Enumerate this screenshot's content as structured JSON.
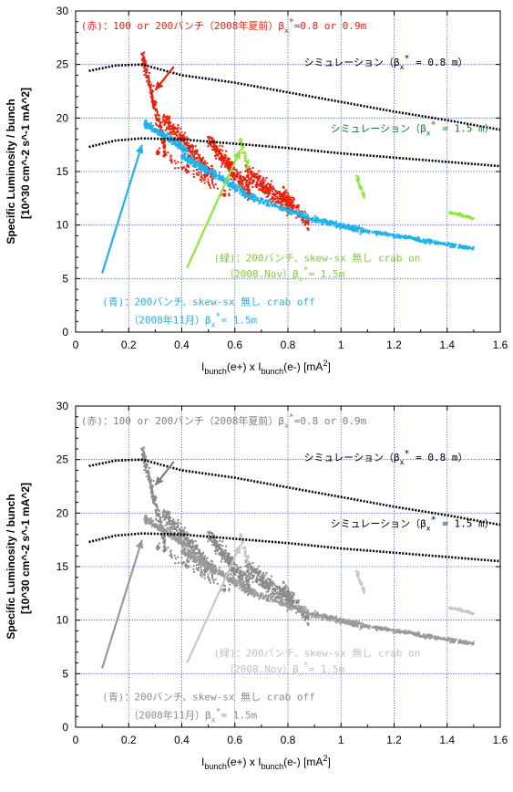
{
  "chart_data": [
    {
      "type": "scatter",
      "panel": "color",
      "xlabel": {
        "main": "I",
        "sub1": "bunch",
        "mid": "(e+) x I",
        "sub2": "bunch",
        "tail": "(e-) [mA",
        "sup": "2",
        "end": "]"
      },
      "ylabel": {
        "line1": "Specific Luminosity / bunch",
        "line2": "[10^30 cm^-2 s^-1 mA^2]"
      },
      "xlim": [
        0,
        1.6
      ],
      "ylim": [
        0,
        30
      ],
      "xticks": [
        "0",
        "0.2",
        "0.4",
        "0.6",
        "0.8",
        "1",
        "1.2",
        "1.4",
        "1.6"
      ],
      "yticks": [
        "0",
        "5",
        "10",
        "15",
        "20",
        "25",
        "30"
      ],
      "grid": true,
      "series": [
        {
          "name": "(赤)：100 or 200バンチ（2008年夏前）βx*=0.8 or 0.9m",
          "color": "#e8200c",
          "style": "points",
          "clusters": [
            {
              "x0": 0.25,
              "x1": 0.34,
              "y0": 26.0,
              "y1": 17.0,
              "spread": 1.6,
              "n": 220
            },
            {
              "x0": 0.33,
              "x1": 0.52,
              "y0": 20.0,
              "y1": 14.5,
              "spread": 2.0,
              "n": 320
            },
            {
              "x0": 0.5,
              "x1": 0.66,
              "y0": 18.0,
              "y1": 13.0,
              "spread": 1.8,
              "n": 320
            },
            {
              "x0": 0.64,
              "x1": 0.82,
              "y0": 15.0,
              "y1": 11.5,
              "spread": 2.0,
              "n": 340
            },
            {
              "x0": 0.78,
              "x1": 0.88,
              "y0": 13.0,
              "y1": 10.0,
              "spread": 1.5,
              "n": 120
            },
            {
              "x0": 0.3,
              "x1": 0.6,
              "y0": 17.0,
              "y1": 12.5,
              "spread": 1.2,
              "n": 90
            }
          ]
        },
        {
          "name": "(青)：200バンチ、skew-sx 無し crab off（2008年11月）βx*= 1.5m",
          "color": "#1fb2ea",
          "style": "points",
          "clusters": [
            {
              "x0": 0.26,
              "x1": 0.42,
              "y0": 19.5,
              "y1": 17.0,
              "spread": 0.8,
              "n": 260
            },
            {
              "x0": 0.4,
              "x1": 0.64,
              "y0": 16.5,
              "y1": 13.0,
              "spread": 0.9,
              "n": 300
            },
            {
              "x0": 0.62,
              "x1": 0.9,
              "y0": 13.0,
              "y1": 10.5,
              "spread": 0.7,
              "n": 220
            },
            {
              "x0": 0.9,
              "x1": 1.08,
              "y0": 10.5,
              "y1": 9.5,
              "spread": 0.7,
              "n": 220
            },
            {
              "x0": 1.08,
              "x1": 1.5,
              "y0": 9.5,
              "y1": 7.8,
              "spread": 0.45,
              "n": 320
            }
          ]
        },
        {
          "name": "(緑)：200バンチ、skew-sx 無し crab on（2008.Nov）βx*= 1.5m",
          "color": "#8fe63c",
          "style": "points",
          "clusters": [
            {
              "x0": 0.62,
              "x1": 0.65,
              "y0": 18.0,
              "y1": 15.5,
              "spread": 0.6,
              "n": 60
            },
            {
              "x0": 1.06,
              "x1": 1.09,
              "y0": 14.5,
              "y1": 12.5,
              "spread": 0.4,
              "n": 60
            },
            {
              "x0": 1.41,
              "x1": 1.5,
              "y0": 11.2,
              "y1": 10.6,
              "spread": 0.3,
              "n": 70
            }
          ]
        },
        {
          "name": "シミュレーション（βx* = 0.8 m）",
          "color": "#000000",
          "style": "dotted-line",
          "x": [
            0.05,
            0.15,
            0.25,
            0.4,
            0.6,
            0.8,
            1.0,
            1.2,
            1.4,
            1.6
          ],
          "y": [
            24.4,
            24.9,
            25.0,
            24.0,
            23.3,
            22.4,
            21.5,
            20.6,
            19.8,
            18.9
          ]
        },
        {
          "name": "シミュレーション（βx* = 1.5 m）",
          "color": "#000000",
          "style": "dotted-line",
          "x": [
            0.05,
            0.15,
            0.25,
            0.4,
            0.6,
            0.8,
            1.0,
            1.2,
            1.4,
            1.6
          ],
          "y": [
            17.3,
            17.9,
            18.1,
            18.0,
            17.6,
            17.2,
            16.7,
            16.3,
            15.9,
            15.5
          ]
        }
      ],
      "annotations": [
        {
          "text": "(赤)：100 or 200バンチ（2008年夏前）β",
          "sub": "x",
          "sup": "*",
          "tail": "=0.8 or 0.9m",
          "color": "#e8200c",
          "x": 0.02,
          "y": 28.3
        },
        {
          "text": "シミュレーション（β",
          "sub": "x",
          "sup": "*",
          "tail": " = 0.8 m）",
          "color": "#000000",
          "x": 0.86,
          "y": 24.9
        },
        {
          "text": "シミュレーション（β",
          "sub": "x",
          "sup": "*",
          "tail": " = 1.5 m）",
          "color": "#0f7a2b",
          "x": 0.96,
          "y": 18.7
        },
        {
          "text": "(緑)：200バンチ、skew-sx 無し crab on",
          "sub": "",
          "sup": "",
          "tail": "",
          "color": "#7ecf2f",
          "x": 0.52,
          "y": 6.6
        },
        {
          "text": "（2008.Nov）β",
          "sub": "x",
          "sup": "*",
          "tail": "= 1.5m",
          "color": "#7ecf2f",
          "x": 0.56,
          "y": 5.1
        },
        {
          "text": "(青)：200バンチ、skew-sx 無し crab off",
          "sub": "",
          "sup": "",
          "tail": "",
          "color": "#1fb2ea",
          "x": 0.1,
          "y": 2.5
        },
        {
          "text": "（2008年11月）β",
          "sub": "x",
          "sup": "*",
          "tail": "= 1.5m",
          "color": "#1fb2ea",
          "x": 0.2,
          "y": 0.8
        }
      ],
      "arrows": [
        {
          "from": [
            0.37,
            24.8
          ],
          "to": [
            0.3,
            22.6
          ],
          "color": "#e8200c"
        },
        {
          "from": [
            0.1,
            5.5
          ],
          "to": [
            0.25,
            17.5
          ],
          "color": "#1fb2ea"
        },
        {
          "from": [
            0.42,
            6.0
          ],
          "to": [
            0.62,
            17.0
          ],
          "color": "#8fe63c"
        }
      ]
    },
    {
      "type": "scatter",
      "panel": "grayscale",
      "note": "same data rendered in grayscale",
      "colors": {
        "red": "#8a8a8a",
        "blue": "#9a9a9a",
        "green": "#c8c8c8",
        "sim": "#000000",
        "annot_red": "#808080",
        "annot_green": "#c0c0c0",
        "annot_blue": "#8c8c8c"
      }
    }
  ]
}
